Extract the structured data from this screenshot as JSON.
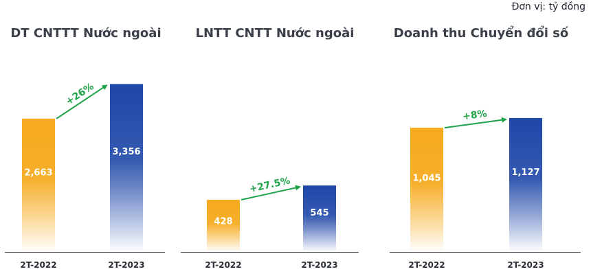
{
  "unit_label": "Đơn vị: tỷ đồng",
  "colors": {
    "bar_2022_top": "#F6A91B",
    "bar_2023_top": "#1E47A8",
    "bar_bottom": "#ffffff",
    "growth_arrow": "#1FA34A",
    "axis": "#555555"
  },
  "chart_data": [
    {
      "type": "bar",
      "title": "DT CNTTT Nước ngoài",
      "categories": [
        "2T-2022",
        "2T-2023"
      ],
      "values": [
        2663,
        3356
      ],
      "value_labels": [
        "2,663",
        "3,356"
      ],
      "growth_label": "+26%",
      "ylim": [
        0,
        3800
      ],
      "grid": false
    },
    {
      "type": "bar",
      "title": "LNTT CNTT Nước ngoài",
      "categories": [
        "2T-2022",
        "2T-2023"
      ],
      "values": [
        428,
        545
      ],
      "value_labels": [
        "428",
        "545"
      ],
      "growth_label": "+27.5%",
      "ylim": [
        0,
        1560
      ],
      "grid": false
    },
    {
      "type": "bar",
      "title": "Doanh thu Chuyển đổi số",
      "categories": [
        "2T-2022",
        "2T-2023"
      ],
      "values": [
        1045,
        1127
      ],
      "value_labels": [
        "1,045",
        "1,127"
      ],
      "growth_label": "+8%",
      "ylim": [
        0,
        1600
      ],
      "grid": false
    }
  ]
}
